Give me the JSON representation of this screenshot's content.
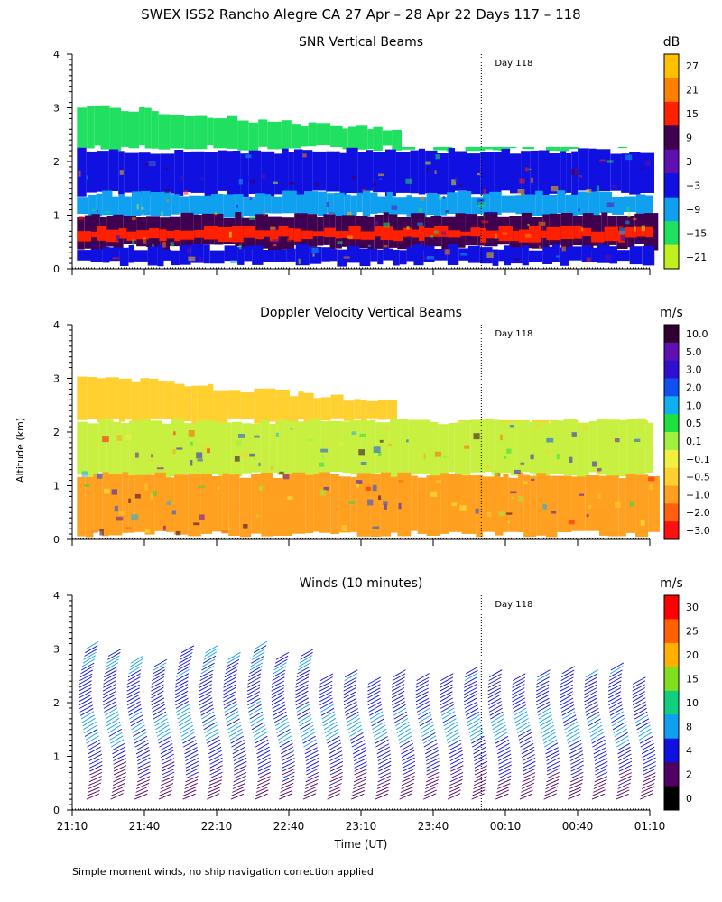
{
  "title": "SWEX ISS2 Rancho Alegre CA  27 Apr – 28 Apr 22 Days 117 – 118",
  "footnote": "Simple moment winds, no ship navigation correction applied",
  "chart_data": [
    {
      "type": "heatmap",
      "title": "SNR Vertical Beams",
      "ylabel": "",
      "ylim": [
        0,
        4
      ],
      "yticks": [
        "0",
        "1",
        "2",
        "3",
        "4"
      ],
      "xticks": [
        "21:10",
        "21:40",
        "22:10",
        "22:40",
        "23:10",
        "23:40",
        "00:10",
        "00:40",
        "01:10"
      ],
      "xlim_minutes": [
        0,
        240
      ],
      "day_marker": {
        "label": "Day 118",
        "x_minutes": 170
      },
      "colorbar": {
        "unit": "dB",
        "labels": [
          "27",
          "21",
          "15",
          "9",
          "3",
          "−3",
          "−9",
          "−15",
          "−21"
        ],
        "colors": [
          "#ffc000",
          "#ff8000",
          "#ff2000",
          "#400050",
          "#6010b0",
          "#1010e0",
          "#10a0f0",
          "#20e060",
          "#c0f020"
        ]
      },
      "layers": [
        {
          "name": "top-noise",
          "alt_bottom": 2.25,
          "alt_top": 3.05,
          "color": "#20e060"
        },
        {
          "name": "upper-blue",
          "alt_bottom": 1.4,
          "alt_top": 2.2,
          "color": "#1010e0"
        },
        {
          "name": "mid-cyan",
          "alt_bottom": 1.0,
          "alt_top": 1.4,
          "color": "#10a0f0"
        },
        {
          "name": "purple-band",
          "alt_bottom": 0.4,
          "alt_top": 1.0,
          "color": "#400050"
        },
        {
          "name": "red-peak",
          "alt_bottom": 0.55,
          "alt_top": 0.75,
          "color": "#ff2000"
        },
        {
          "name": "lower-blue",
          "alt_bottom": 0.1,
          "alt_top": 0.4,
          "color": "#1010e0"
        }
      ]
    },
    {
      "type": "heatmap",
      "title": "Doppler Velocity Vertical Beams",
      "ylabel": "Altitude (km)",
      "ylim": [
        0,
        4
      ],
      "yticks": [
        "0",
        "1",
        "2",
        "3",
        "4"
      ],
      "xticks": [
        "21:10",
        "21:40",
        "22:10",
        "22:40",
        "23:10",
        "23:40",
        "00:10",
        "00:40",
        "01:10"
      ],
      "xlim_minutes": [
        0,
        240
      ],
      "day_marker": {
        "label": "Day 118",
        "x_minutes": 170
      },
      "colorbar": {
        "unit": "m/s",
        "labels": [
          "10.0",
          "5.0",
          "3.0",
          "2.0",
          "1.0",
          "0.5",
          "0.1",
          "−0.1",
          "−0.5",
          "−1.0",
          "−2.0",
          "−3.0"
        ],
        "colors": [
          "#300030",
          "#6010b0",
          "#3010d0",
          "#1050f0",
          "#10b0f0",
          "#20e040",
          "#a0f040",
          "#f0f040",
          "#ffd030",
          "#ffa020",
          "#ff6010",
          "#ff1010"
        ]
      },
      "layers": [
        {
          "name": "upper-orange",
          "alt_bottom": 2.2,
          "alt_top": 3.05,
          "color": "#ffd030"
        },
        {
          "name": "mid-yellowgreen",
          "alt_bottom": 1.2,
          "alt_top": 2.2,
          "color": "#c8f040"
        },
        {
          "name": "low-orange",
          "alt_bottom": 0.1,
          "alt_top": 1.2,
          "color": "#ffa020"
        }
      ]
    },
    {
      "type": "wind_barbs",
      "title": "Winds (10 minutes)",
      "ylabel": "",
      "xlabel": "Time (UT)",
      "ylim": [
        0,
        4
      ],
      "yticks": [
        "0",
        "1",
        "2",
        "3",
        "4"
      ],
      "xticks": [
        "21:10",
        "21:40",
        "22:10",
        "22:40",
        "23:10",
        "23:40",
        "00:10",
        "00:40",
        "01:10"
      ],
      "xlim_minutes": [
        0,
        240
      ],
      "day_marker": {
        "label": "Day 118",
        "x_minutes": 170
      },
      "profile_interval_minutes": 10,
      "profile_count": 24,
      "colorbar": {
        "unit": "m/s",
        "labels": [
          "30",
          "25",
          "20",
          "15",
          "10",
          "8",
          "4",
          "2",
          "0"
        ],
        "colors": [
          "#ff0000",
          "#ff6000",
          "#ffb000",
          "#80e020",
          "#10d080",
          "#10a0f0",
          "#1010e0",
          "#500060",
          "#000000"
        ]
      },
      "speed_profile": [
        {
          "alt_km": 0.4,
          "speed_ms": 3
        },
        {
          "alt_km": 1.0,
          "speed_ms": 6
        },
        {
          "alt_km": 1.4,
          "speed_ms": 9
        },
        {
          "alt_km": 2.2,
          "speed_ms": 6
        },
        {
          "alt_km": 2.6,
          "speed_ms": 8
        }
      ]
    }
  ]
}
